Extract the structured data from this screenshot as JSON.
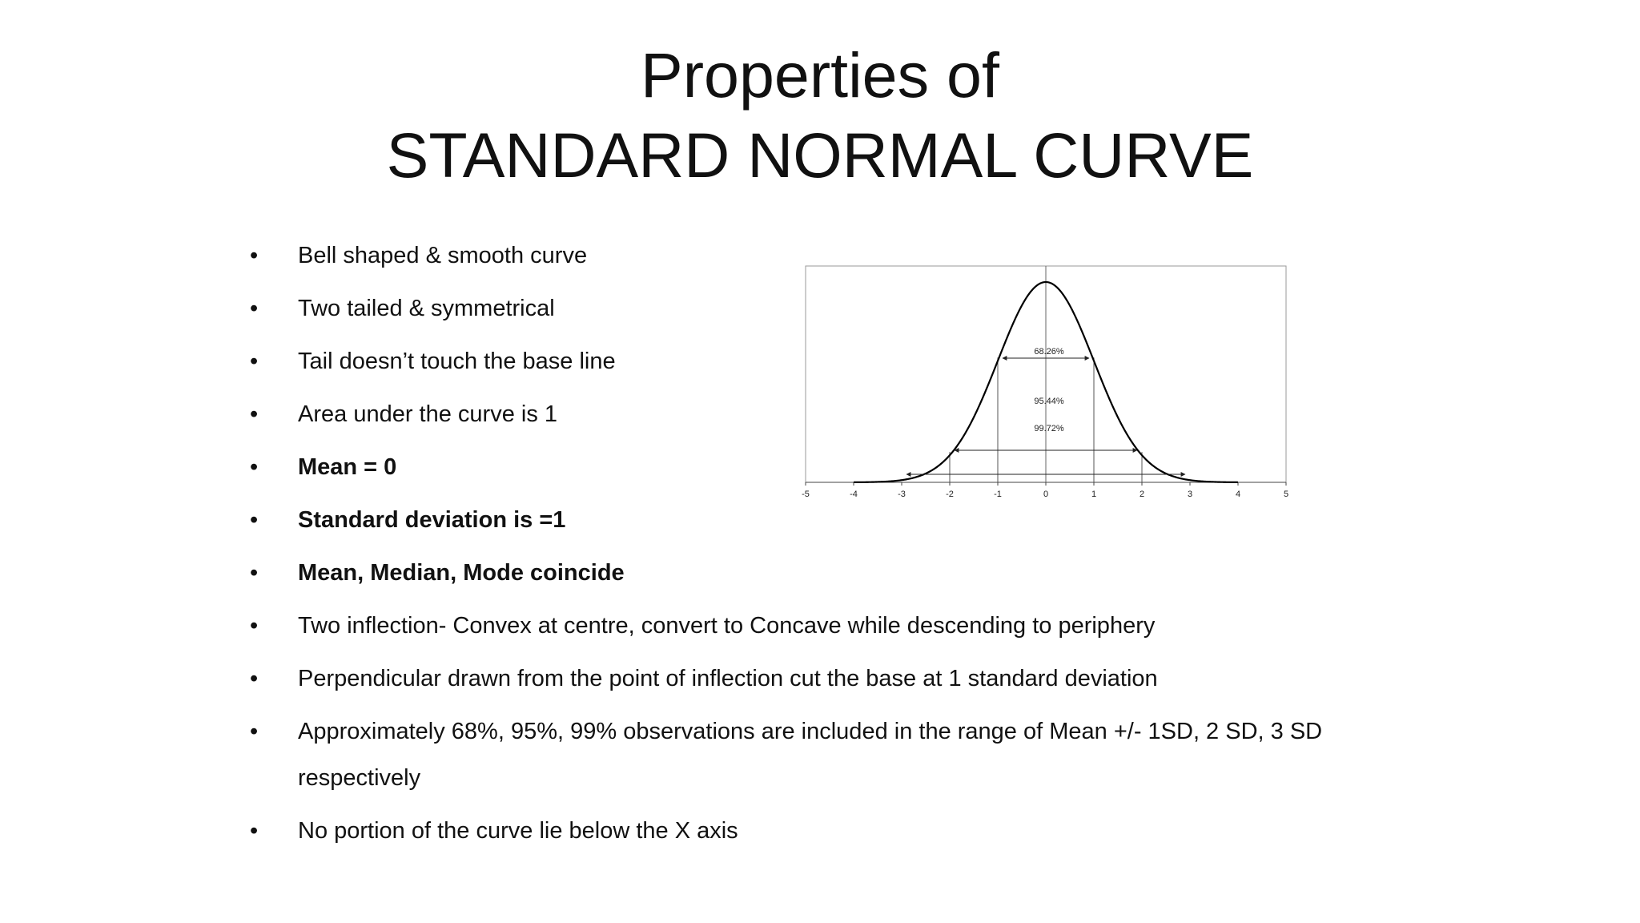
{
  "title": {
    "line1": "Properties of",
    "line2": "STANDARD NORMAL CURVE"
  },
  "bullets": [
    {
      "text": "Bell shaped & smooth curve",
      "bold": false
    },
    {
      "text": "Two tailed & symmetrical",
      "bold": false
    },
    {
      "text": "Tail doesn’t touch the base line",
      "bold": false
    },
    {
      "text": "Area under the curve is 1",
      "bold": false
    },
    {
      "text": "Mean = 0",
      "bold": true
    },
    {
      "text": "Standard deviation is =1",
      "bold": true
    },
    {
      "text": "Mean, Median, Mode coincide",
      "bold": true
    },
    {
      "text": "Two inflection- Convex at centre, convert to Concave while descending to periphery",
      "bold": false
    },
    {
      "text": "Perpendicular drawn from the point of inflection cut the base at 1 standard deviation",
      "bold": false
    },
    {
      "text": "Approximately 68%, 95%, 99% observations are included in the range of Mean +/-  1SD, 2 SD, 3 SD respectively",
      "bold": false
    },
    {
      "text": "No portion of the curve lie below the X axis",
      "bold": false
    }
  ],
  "bullet_glyph": "•",
  "chart_data": {
    "type": "line",
    "title": "",
    "xlabel": "",
    "ylabel": "",
    "xlim": [
      -5,
      5
    ],
    "x_ticks": [
      "-5",
      "-4",
      "-3",
      "-2",
      "-1",
      "0",
      "1",
      "2",
      "3",
      "4",
      "5"
    ],
    "curve": "standard normal density, mean 0, standard deviation 1",
    "intervals": [
      {
        "label": "68.26%",
        "from": -1,
        "to": 1
      },
      {
        "label": "95.44%",
        "from": -2,
        "to": 2
      },
      {
        "label": "99.72%",
        "from": -3,
        "to": 3
      }
    ],
    "grid": false
  }
}
